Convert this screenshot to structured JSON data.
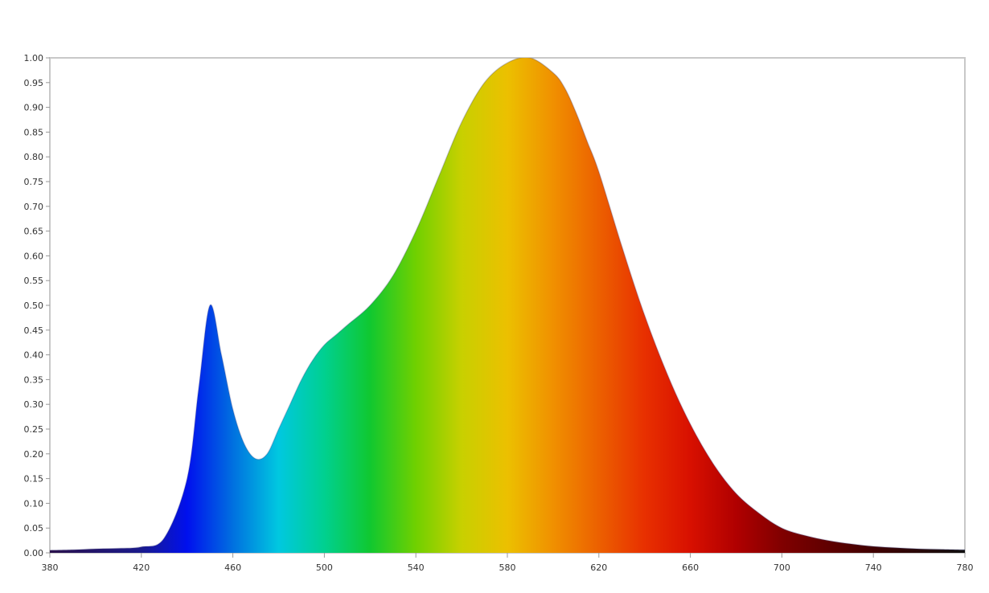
{
  "chart_data": {
    "type": "area",
    "title": "",
    "xlabel": "",
    "ylabel": "",
    "xlim": [
      380,
      780
    ],
    "ylim": [
      0,
      1
    ],
    "grid": false,
    "legend": "none",
    "x_ticks": [
      380,
      420,
      460,
      500,
      540,
      580,
      620,
      660,
      700,
      740,
      780
    ],
    "y_ticks": [
      0,
      0.05,
      0.1,
      0.15,
      0.2,
      0.25,
      0.3,
      0.35,
      0.4,
      0.45,
      0.5,
      0.55,
      0.6,
      0.65,
      0.7,
      0.75,
      0.8,
      0.85,
      0.9,
      0.95,
      1.0
    ],
    "series": [
      {
        "x": [
          380,
          390,
          400,
          410,
          420,
          430,
          440,
          445,
          450,
          455,
          460,
          465,
          470,
          475,
          480,
          485,
          490,
          495,
          500,
          505,
          510,
          520,
          530,
          540,
          550,
          560,
          570,
          580,
          590,
          600,
          605,
          610,
          615,
          620,
          630,
          640,
          650,
          660,
          670,
          680,
          690,
          700,
          710,
          720,
          730,
          740,
          750,
          760,
          770,
          780
        ],
        "values": [
          0.005,
          0.006,
          0.008,
          0.009,
          0.012,
          0.03,
          0.15,
          0.33,
          0.5,
          0.4,
          0.29,
          0.22,
          0.19,
          0.2,
          0.25,
          0.3,
          0.35,
          0.39,
          0.42,
          0.44,
          0.46,
          0.5,
          0.56,
          0.65,
          0.76,
          0.87,
          0.95,
          0.99,
          1.0,
          0.97,
          0.94,
          0.89,
          0.83,
          0.77,
          0.62,
          0.48,
          0.36,
          0.26,
          0.18,
          0.12,
          0.08,
          0.05,
          0.035,
          0.025,
          0.018,
          0.013,
          0.01,
          0.008,
          0.007,
          0.006
        ]
      }
    ]
  }
}
